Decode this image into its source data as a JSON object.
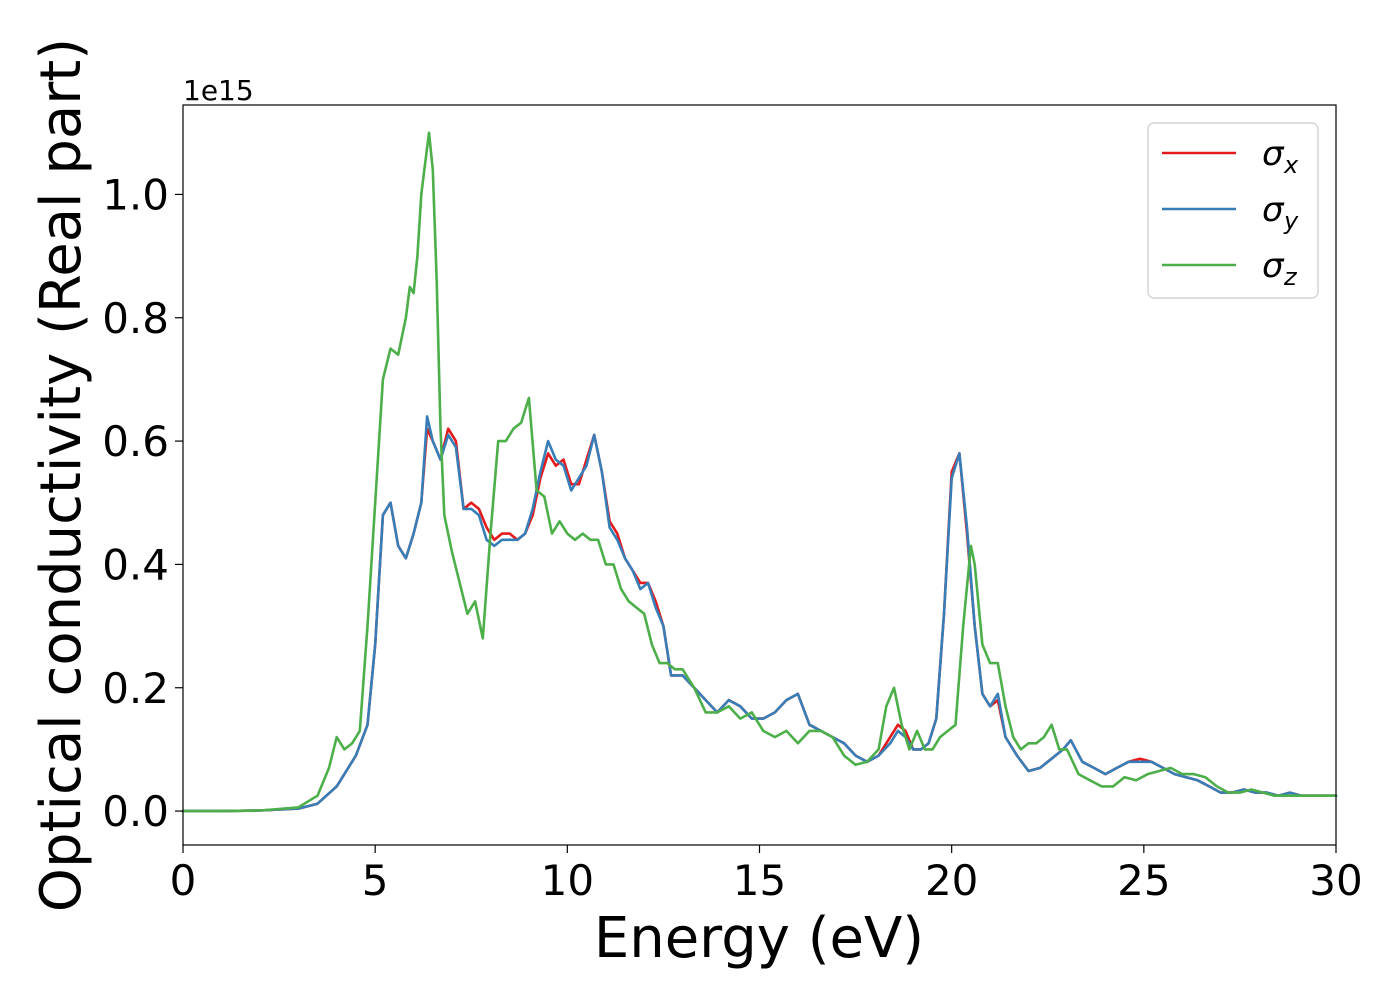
{
  "chart_data": {
    "type": "line",
    "title": "",
    "xlabel": "Energy (eV)",
    "ylabel": "Optical conductivity (Real part)",
    "y_offset_label": "1e15",
    "xlim": [
      0,
      30
    ],
    "ylim": [
      -0.055,
      1.145
    ],
    "x_ticks": [
      0,
      5,
      10,
      15,
      20,
      25,
      30
    ],
    "x_tick_labels": [
      "0",
      "5",
      "10",
      "15",
      "20",
      "25",
      "30"
    ],
    "y_ticks": [
      0.0,
      0.2,
      0.4,
      0.6,
      0.8,
      1.0
    ],
    "y_tick_labels": [
      "0.0",
      "0.2",
      "0.4",
      "0.6",
      "0.8",
      "1.0"
    ],
    "grid": false,
    "legend_position": "top-right",
    "series": [
      {
        "name": "σx",
        "symbol": "σ",
        "subscript": "x",
        "color": "#e41a1c",
        "x": [
          0,
          1,
          2,
          3,
          3.5,
          4.0,
          4.5,
          4.8,
          5.0,
          5.2,
          5.4,
          5.6,
          5.8,
          6.0,
          6.2,
          6.35,
          6.5,
          6.7,
          6.9,
          7.1,
          7.3,
          7.5,
          7.7,
          7.9,
          8.1,
          8.3,
          8.5,
          8.7,
          8.9,
          9.1,
          9.3,
          9.5,
          9.7,
          9.9,
          10.1,
          10.3,
          10.5,
          10.7,
          10.9,
          11.1,
          11.3,
          11.5,
          11.7,
          11.9,
          12.1,
          12.3,
          12.5,
          12.7,
          13.0,
          13.3,
          13.6,
          13.9,
          14.2,
          14.5,
          14.8,
          15.1,
          15.4,
          15.7,
          16.0,
          16.3,
          16.6,
          16.9,
          17.2,
          17.5,
          17.8,
          18.1,
          18.4,
          18.6,
          18.8,
          19.0,
          19.2,
          19.4,
          19.6,
          19.8,
          20.0,
          20.2,
          20.4,
          20.6,
          20.8,
          21.0,
          21.2,
          21.4,
          21.7,
          22.0,
          22.3,
          22.6,
          22.9,
          23.1,
          23.4,
          23.7,
          24.0,
          24.3,
          24.6,
          24.9,
          25.2,
          25.5,
          25.8,
          26.1,
          26.4,
          26.7,
          27.0,
          27.3,
          27.6,
          27.9,
          28.2,
          28.5,
          28.8,
          29.1,
          29.4,
          29.7,
          30.0
        ],
        "values": [
          0.0,
          0.0,
          0.001,
          0.004,
          0.012,
          0.04,
          0.09,
          0.14,
          0.27,
          0.48,
          0.5,
          0.43,
          0.41,
          0.45,
          0.5,
          0.62,
          0.6,
          0.57,
          0.62,
          0.6,
          0.49,
          0.5,
          0.49,
          0.46,
          0.44,
          0.45,
          0.45,
          0.44,
          0.45,
          0.48,
          0.54,
          0.58,
          0.56,
          0.57,
          0.53,
          0.53,
          0.57,
          0.61,
          0.55,
          0.47,
          0.45,
          0.41,
          0.39,
          0.37,
          0.37,
          0.34,
          0.3,
          0.22,
          0.22,
          0.2,
          0.18,
          0.16,
          0.18,
          0.17,
          0.15,
          0.15,
          0.16,
          0.18,
          0.19,
          0.14,
          0.13,
          0.12,
          0.11,
          0.09,
          0.08,
          0.09,
          0.12,
          0.14,
          0.13,
          0.1,
          0.1,
          0.11,
          0.15,
          0.32,
          0.55,
          0.58,
          0.45,
          0.3,
          0.19,
          0.17,
          0.18,
          0.12,
          0.09,
          0.065,
          0.07,
          0.085,
          0.1,
          0.115,
          0.08,
          0.07,
          0.06,
          0.07,
          0.08,
          0.085,
          0.08,
          0.07,
          0.06,
          0.055,
          0.05,
          0.04,
          0.03,
          0.03,
          0.035,
          0.03,
          0.03,
          0.025,
          0.03,
          0.025,
          0.025,
          0.025,
          0.025
        ]
      },
      {
        "name": "σy",
        "symbol": "σ",
        "subscript": "y",
        "color": "#377eb8",
        "x": [
          0,
          1,
          2,
          3,
          3.5,
          4.0,
          4.5,
          4.8,
          5.0,
          5.2,
          5.4,
          5.6,
          5.8,
          6.0,
          6.2,
          6.35,
          6.5,
          6.7,
          6.9,
          7.1,
          7.3,
          7.5,
          7.7,
          7.9,
          8.1,
          8.3,
          8.5,
          8.7,
          8.9,
          9.1,
          9.3,
          9.5,
          9.7,
          9.9,
          10.1,
          10.3,
          10.5,
          10.7,
          10.9,
          11.1,
          11.3,
          11.5,
          11.7,
          11.9,
          12.1,
          12.3,
          12.5,
          12.7,
          13.0,
          13.3,
          13.6,
          13.9,
          14.2,
          14.5,
          14.8,
          15.1,
          15.4,
          15.7,
          16.0,
          16.3,
          16.6,
          16.9,
          17.2,
          17.5,
          17.8,
          18.1,
          18.4,
          18.6,
          18.8,
          19.0,
          19.2,
          19.4,
          19.6,
          19.8,
          20.0,
          20.2,
          20.4,
          20.6,
          20.8,
          21.0,
          21.2,
          21.4,
          21.7,
          22.0,
          22.3,
          22.6,
          22.9,
          23.1,
          23.4,
          23.7,
          24.0,
          24.3,
          24.6,
          24.9,
          25.2,
          25.5,
          25.8,
          26.1,
          26.4,
          26.7,
          27.0,
          27.3,
          27.6,
          27.9,
          28.2,
          28.5,
          28.8,
          29.1,
          29.4,
          29.7,
          30.0
        ],
        "values": [
          0.0,
          0.0,
          0.001,
          0.004,
          0.012,
          0.04,
          0.09,
          0.14,
          0.27,
          0.48,
          0.5,
          0.43,
          0.41,
          0.45,
          0.5,
          0.64,
          0.6,
          0.57,
          0.61,
          0.59,
          0.49,
          0.49,
          0.48,
          0.44,
          0.43,
          0.44,
          0.44,
          0.44,
          0.45,
          0.49,
          0.55,
          0.6,
          0.57,
          0.56,
          0.52,
          0.54,
          0.56,
          0.61,
          0.55,
          0.46,
          0.44,
          0.41,
          0.39,
          0.36,
          0.37,
          0.33,
          0.3,
          0.22,
          0.22,
          0.2,
          0.18,
          0.16,
          0.18,
          0.17,
          0.15,
          0.15,
          0.16,
          0.18,
          0.19,
          0.14,
          0.13,
          0.12,
          0.11,
          0.09,
          0.08,
          0.09,
          0.11,
          0.13,
          0.12,
          0.1,
          0.1,
          0.11,
          0.15,
          0.32,
          0.54,
          0.58,
          0.46,
          0.3,
          0.19,
          0.17,
          0.19,
          0.12,
          0.09,
          0.065,
          0.07,
          0.085,
          0.1,
          0.115,
          0.08,
          0.07,
          0.06,
          0.07,
          0.08,
          0.08,
          0.08,
          0.07,
          0.06,
          0.055,
          0.05,
          0.04,
          0.03,
          0.03,
          0.035,
          0.03,
          0.03,
          0.025,
          0.03,
          0.025,
          0.025,
          0.025,
          0.025
        ]
      },
      {
        "name": "σz",
        "symbol": "σ",
        "subscript": "z",
        "color": "#4daf4a",
        "x": [
          0,
          1,
          2,
          3,
          3.5,
          3.8,
          4.0,
          4.2,
          4.4,
          4.6,
          4.8,
          5.0,
          5.2,
          5.4,
          5.6,
          5.8,
          5.9,
          6.0,
          6.1,
          6.2,
          6.3,
          6.4,
          6.5,
          6.6,
          6.7,
          6.8,
          7.0,
          7.2,
          7.4,
          7.6,
          7.8,
          8.0,
          8.2,
          8.4,
          8.6,
          8.8,
          9.0,
          9.2,
          9.4,
          9.6,
          9.8,
          10.0,
          10.2,
          10.4,
          10.6,
          10.8,
          11.0,
          11.2,
          11.4,
          11.6,
          11.8,
          12.0,
          12.2,
          12.4,
          12.6,
          12.8,
          13.0,
          13.3,
          13.6,
          13.9,
          14.2,
          14.5,
          14.8,
          15.1,
          15.4,
          15.7,
          16.0,
          16.3,
          16.6,
          16.9,
          17.2,
          17.5,
          17.8,
          18.1,
          18.3,
          18.5,
          18.7,
          18.9,
          19.1,
          19.3,
          19.5,
          19.7,
          19.9,
          20.1,
          20.3,
          20.5,
          20.6,
          20.8,
          21.0,
          21.2,
          21.4,
          21.6,
          21.8,
          22.0,
          22.2,
          22.4,
          22.6,
          22.8,
          23.0,
          23.3,
          23.6,
          23.9,
          24.2,
          24.5,
          24.8,
          25.1,
          25.4,
          25.7,
          26.0,
          26.3,
          26.6,
          26.9,
          27.2,
          27.5,
          27.8,
          28.1,
          28.4,
          28.7,
          29.0,
          29.3,
          29.6,
          30.0
        ],
        "values": [
          0.0,
          0.0,
          0.001,
          0.006,
          0.025,
          0.07,
          0.12,
          0.1,
          0.11,
          0.13,
          0.3,
          0.5,
          0.7,
          0.75,
          0.74,
          0.8,
          0.85,
          0.84,
          0.9,
          1.0,
          1.05,
          1.1,
          1.04,
          0.86,
          0.62,
          0.48,
          0.42,
          0.37,
          0.32,
          0.34,
          0.28,
          0.45,
          0.6,
          0.6,
          0.62,
          0.63,
          0.67,
          0.52,
          0.51,
          0.45,
          0.47,
          0.45,
          0.44,
          0.45,
          0.44,
          0.44,
          0.4,
          0.4,
          0.36,
          0.34,
          0.33,
          0.32,
          0.27,
          0.24,
          0.24,
          0.23,
          0.23,
          0.2,
          0.16,
          0.16,
          0.17,
          0.15,
          0.16,
          0.13,
          0.12,
          0.13,
          0.11,
          0.13,
          0.13,
          0.12,
          0.09,
          0.075,
          0.08,
          0.1,
          0.17,
          0.2,
          0.14,
          0.1,
          0.13,
          0.1,
          0.1,
          0.12,
          0.13,
          0.14,
          0.3,
          0.43,
          0.4,
          0.27,
          0.24,
          0.24,
          0.17,
          0.12,
          0.1,
          0.11,
          0.11,
          0.12,
          0.14,
          0.1,
          0.1,
          0.06,
          0.05,
          0.04,
          0.04,
          0.055,
          0.05,
          0.06,
          0.065,
          0.07,
          0.06,
          0.06,
          0.055,
          0.04,
          0.03,
          0.03,
          0.035,
          0.03,
          0.025,
          0.025,
          0.025,
          0.025,
          0.025,
          0.025
        ]
      }
    ]
  }
}
